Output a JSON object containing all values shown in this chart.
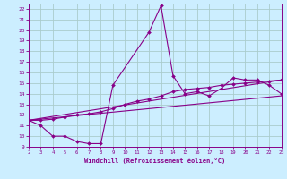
{
  "xlabel": "Windchill (Refroidissement éolien,°C)",
  "xlim": [
    2,
    23
  ],
  "ylim": [
    9,
    22.5
  ],
  "xticks": [
    2,
    3,
    4,
    5,
    6,
    7,
    8,
    9,
    10,
    11,
    12,
    13,
    14,
    15,
    16,
    17,
    18,
    19,
    20,
    21,
    22,
    23
  ],
  "yticks": [
    9,
    10,
    11,
    12,
    13,
    14,
    15,
    16,
    17,
    18,
    19,
    20,
    21,
    22
  ],
  "bg_color": "#cceeff",
  "grid_color": "#aacccc",
  "line_color": "#880088",
  "line1_x": [
    2,
    3,
    4,
    5,
    6,
    7,
    8,
    9,
    12,
    13,
    14,
    15,
    16,
    17,
    18,
    19,
    20,
    21,
    22,
    23
  ],
  "line1_y": [
    11.5,
    11.0,
    10.0,
    10.0,
    9.5,
    9.3,
    9.3,
    14.8,
    19.8,
    22.3,
    15.7,
    14.0,
    14.2,
    13.8,
    14.5,
    15.5,
    15.3,
    15.3,
    14.8,
    14.0
  ],
  "line2_x": [
    2,
    3,
    4,
    5,
    6,
    7,
    8,
    9,
    10,
    11,
    12,
    13,
    14,
    15,
    16,
    17,
    18,
    19,
    20,
    21,
    22,
    23
  ],
  "line2_y": [
    11.5,
    11.5,
    11.6,
    11.8,
    12.0,
    12.1,
    12.3,
    12.6,
    13.0,
    13.3,
    13.5,
    13.8,
    14.2,
    14.4,
    14.5,
    14.6,
    14.8,
    14.9,
    15.0,
    15.1,
    15.2,
    15.3
  ],
  "line3_x": [
    2,
    23
  ],
  "line3_y": [
    11.5,
    13.8
  ],
  "line4_x": [
    2,
    23
  ],
  "line4_y": [
    11.5,
    15.3
  ]
}
